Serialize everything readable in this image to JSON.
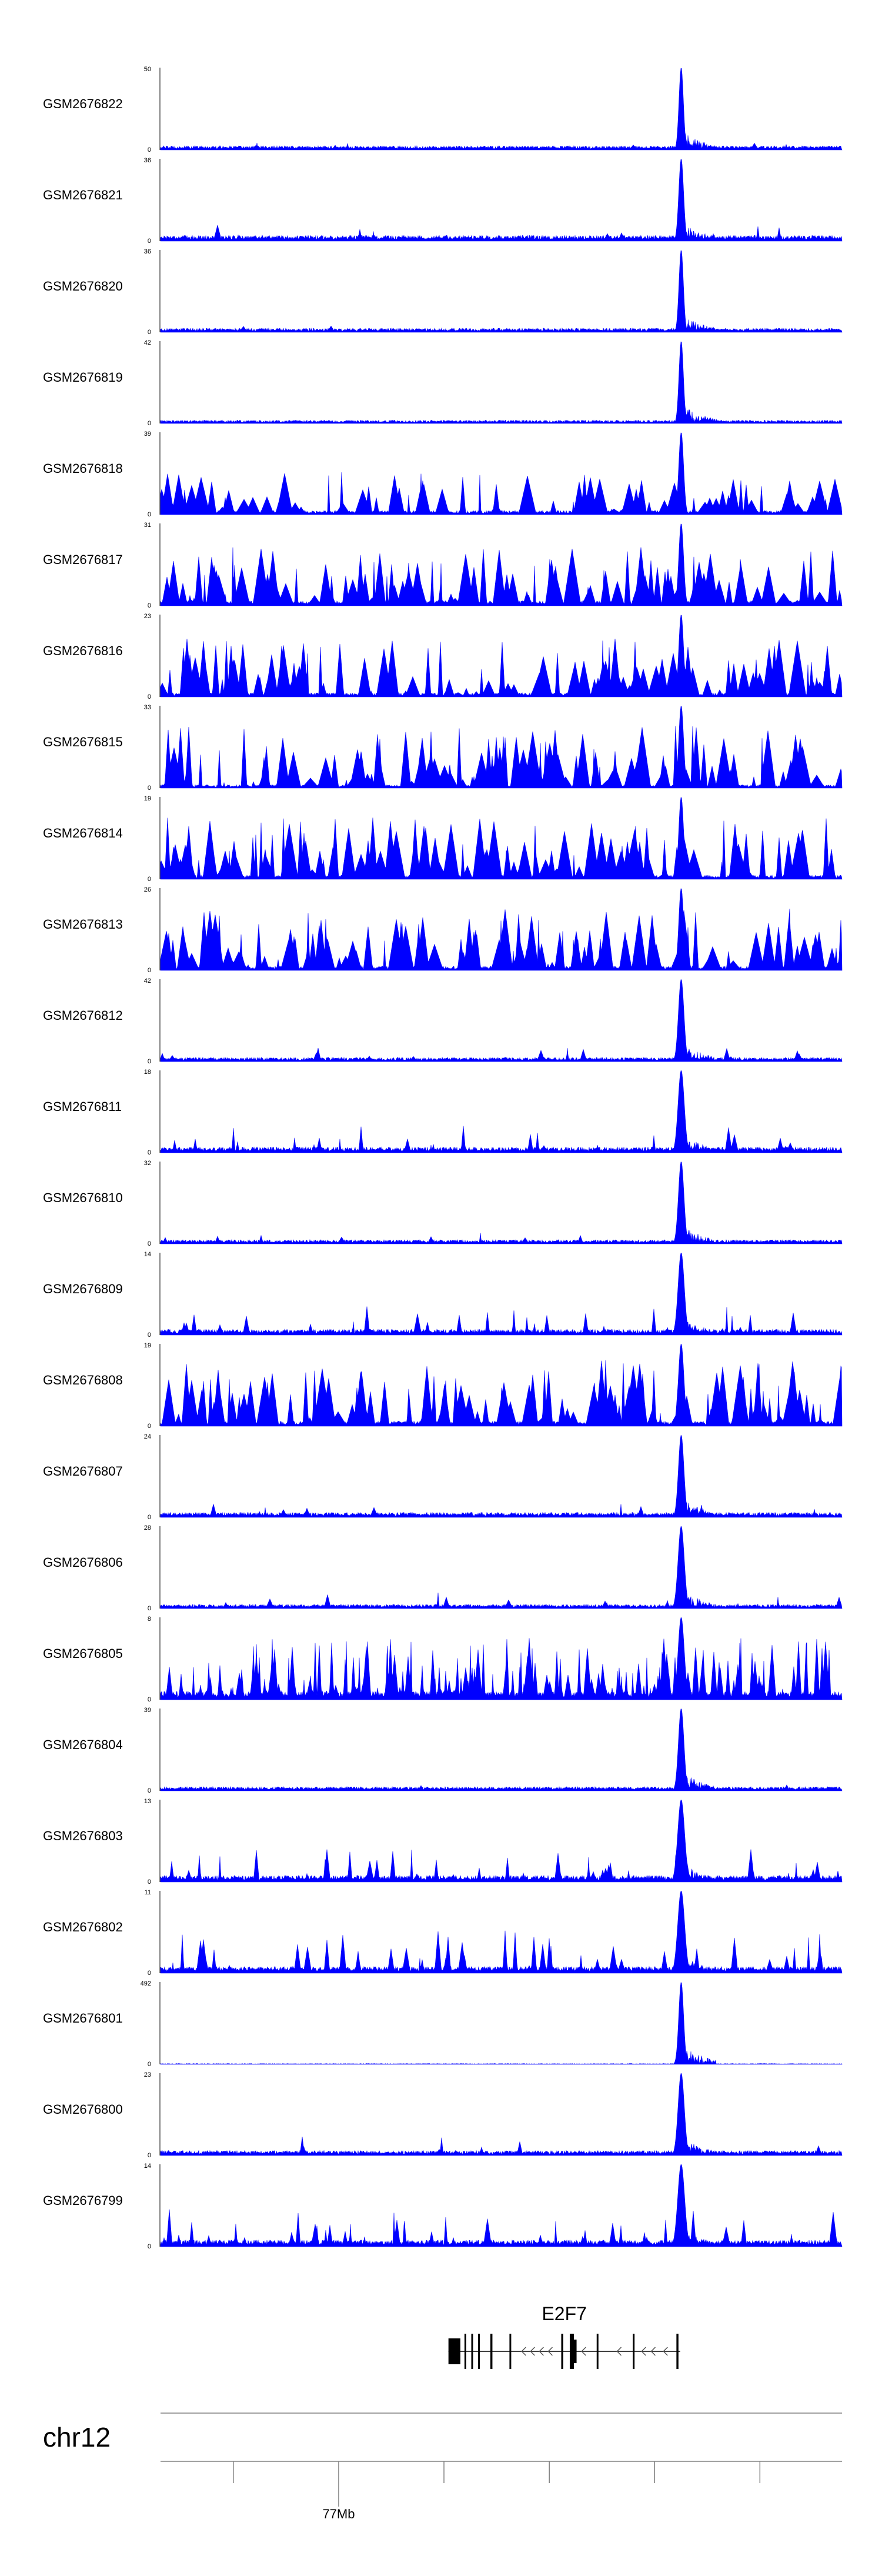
{
  "figure": {
    "colors": {
      "signal": "#0000ff",
      "axis": "#000000",
      "gene": "#000000",
      "scale": "#808080"
    }
  },
  "chart_data": {
    "type": "area",
    "tracks": [
      {
        "name": "GSM2676822",
        "ymax": "50",
        "ymin": "0",
        "peak_pos": 0.764,
        "shape": "peak",
        "baseline": 0.05,
        "noise": 0.1,
        "peak_width": 0.0032
      },
      {
        "name": "GSM2676821",
        "ymax": "36",
        "ymin": "0",
        "peak_pos": 0.764,
        "shape": "peak",
        "baseline": 0.07,
        "noise": 0.22,
        "peak_width": 0.0035
      },
      {
        "name": "GSM2676820",
        "ymax": "36",
        "ymin": "0",
        "peak_pos": 0.764,
        "shape": "peak",
        "baseline": 0.05,
        "noise": 0.08,
        "peak_width": 0.0032
      },
      {
        "name": "GSM2676819",
        "ymax": "42",
        "ymin": "0",
        "peak_pos": 0.764,
        "shape": "peak",
        "baseline": 0.04,
        "noise": 0.07,
        "peak_width": 0.0032
      },
      {
        "name": "GSM2676818",
        "ymax": "39",
        "ymin": "0",
        "peak_pos": 0.764,
        "shape": "spiky",
        "baseline": 0.05,
        "noise": 0.55,
        "peak_width": 0.0035
      },
      {
        "name": "GSM2676817",
        "ymax": "31",
        "ymin": "0",
        "peak_pos": 0.764,
        "shape": "spiky",
        "baseline": 0.06,
        "noise": 0.75,
        "peak_width": 0.0035
      },
      {
        "name": "GSM2676816",
        "ymax": "23",
        "ymin": "0",
        "peak_pos": 0.764,
        "shape": "spiky",
        "baseline": 0.05,
        "noise": 0.75,
        "peak_width": 0.0035
      },
      {
        "name": "GSM2676815",
        "ymax": "33",
        "ymin": "0",
        "peak_pos": 0.764,
        "shape": "spiky",
        "baseline": 0.04,
        "noise": 0.8,
        "peak_width": 0.0035
      },
      {
        "name": "GSM2676814",
        "ymax": "19",
        "ymin": "0",
        "peak_pos": 0.764,
        "shape": "spiky",
        "baseline": 0.05,
        "noise": 0.8,
        "peak_width": 0.0035
      },
      {
        "name": "GSM2676813",
        "ymax": "26",
        "ymin": "0",
        "peak_pos": 0.764,
        "shape": "spiky",
        "baseline": 0.05,
        "noise": 0.8,
        "peak_width": 0.0035
      },
      {
        "name": "GSM2676812",
        "ymax": "42",
        "ymin": "0",
        "peak_pos": 0.764,
        "shape": "peak",
        "baseline": 0.05,
        "noise": 0.18,
        "peak_width": 0.004
      },
      {
        "name": "GSM2676811",
        "ymax": "18",
        "ymin": "0",
        "peak_pos": 0.764,
        "shape": "peak",
        "baseline": 0.07,
        "noise": 0.38,
        "peak_width": 0.0045
      },
      {
        "name": "GSM2676810",
        "ymax": "32",
        "ymin": "0",
        "peak_pos": 0.764,
        "shape": "peak",
        "baseline": 0.05,
        "noise": 0.15,
        "peak_width": 0.004
      },
      {
        "name": "GSM2676809",
        "ymax": "14",
        "ymin": "0",
        "peak_pos": 0.764,
        "shape": "peak",
        "baseline": 0.07,
        "noise": 0.4,
        "peak_width": 0.0045
      },
      {
        "name": "GSM2676808",
        "ymax": "19",
        "ymin": "0",
        "peak_pos": 0.764,
        "shape": "spiky",
        "baseline": 0.06,
        "noise": 0.85,
        "peak_width": 0.004
      },
      {
        "name": "GSM2676807",
        "ymax": "24",
        "ymin": "0",
        "peak_pos": 0.764,
        "shape": "peak",
        "baseline": 0.06,
        "noise": 0.18,
        "peak_width": 0.004
      },
      {
        "name": "GSM2676806",
        "ymax": "28",
        "ymin": "0",
        "peak_pos": 0.764,
        "shape": "peak",
        "baseline": 0.05,
        "noise": 0.22,
        "peak_width": 0.0045
      },
      {
        "name": "GSM2676805",
        "ymax": "8",
        "ymin": "0",
        "peak_pos": 0.764,
        "shape": "dense",
        "baseline": 0.1,
        "noise": 0.75,
        "peak_width": 0.0045
      },
      {
        "name": "GSM2676804",
        "ymax": "39",
        "ymin": "0",
        "peak_pos": 0.764,
        "shape": "peak",
        "baseline": 0.05,
        "noise": 0.12,
        "peak_width": 0.004
      },
      {
        "name": "GSM2676803",
        "ymax": "13",
        "ymin": "0",
        "peak_pos": 0.764,
        "shape": "peak",
        "baseline": 0.08,
        "noise": 0.45,
        "peak_width": 0.005
      },
      {
        "name": "GSM2676802",
        "ymax": "11",
        "ymin": "0",
        "peak_pos": 0.764,
        "shape": "peak",
        "baseline": 0.08,
        "noise": 0.55,
        "peak_width": 0.005
      },
      {
        "name": "GSM2676801",
        "ymax": "492",
        "ymin": "0",
        "peak_pos": 0.764,
        "shape": "peak",
        "baseline": 0.01,
        "noise": 0.02,
        "peak_width": 0.0035
      },
      {
        "name": "GSM2676800",
        "ymax": "23",
        "ymin": "0",
        "peak_pos": 0.764,
        "shape": "peak",
        "baseline": 0.06,
        "noise": 0.25,
        "peak_width": 0.0045
      },
      {
        "name": "GSM2676799",
        "ymax": "14",
        "ymin": "0",
        "peak_pos": 0.764,
        "shape": "peak",
        "baseline": 0.08,
        "noise": 0.5,
        "peak_width": 0.005
      }
    ],
    "gene": {
      "name": "E2F7",
      "strand": "-",
      "start": 0.4225,
      "end": 0.7625,
      "exons": [
        {
          "start": 0.4225,
          "end": 0.44
        },
        {
          "start": 0.446,
          "end": 0.4485
        },
        {
          "start": 0.456,
          "end": 0.4585
        },
        {
          "start": 0.466,
          "end": 0.4685
        },
        {
          "start": 0.484,
          "end": 0.487
        },
        {
          "start": 0.512,
          "end": 0.514
        },
        {
          "start": 0.588,
          "end": 0.591
        },
        {
          "start": 0.6005,
          "end": 0.6065
        },
        {
          "start": 0.64,
          "end": 0.6425
        },
        {
          "start": 0.693,
          "end": 0.6955
        },
        {
          "start": 0.757,
          "end": 0.76
        }
      ],
      "thin_segment": {
        "start": 0.604,
        "end": 0.6105
      },
      "arrows": [
        0.53,
        0.543,
        0.556,
        0.569,
        0.618,
        0.67,
        0.706,
        0.72,
        0.738
      ]
    },
    "chromosome": "chr12",
    "ticks": [
      0.1068,
      0.2614,
      0.4159,
      0.5705,
      0.725,
      0.8795
    ],
    "tick_labels": [
      {
        "pos": 0.2614,
        "text": "77Mb"
      }
    ]
  }
}
